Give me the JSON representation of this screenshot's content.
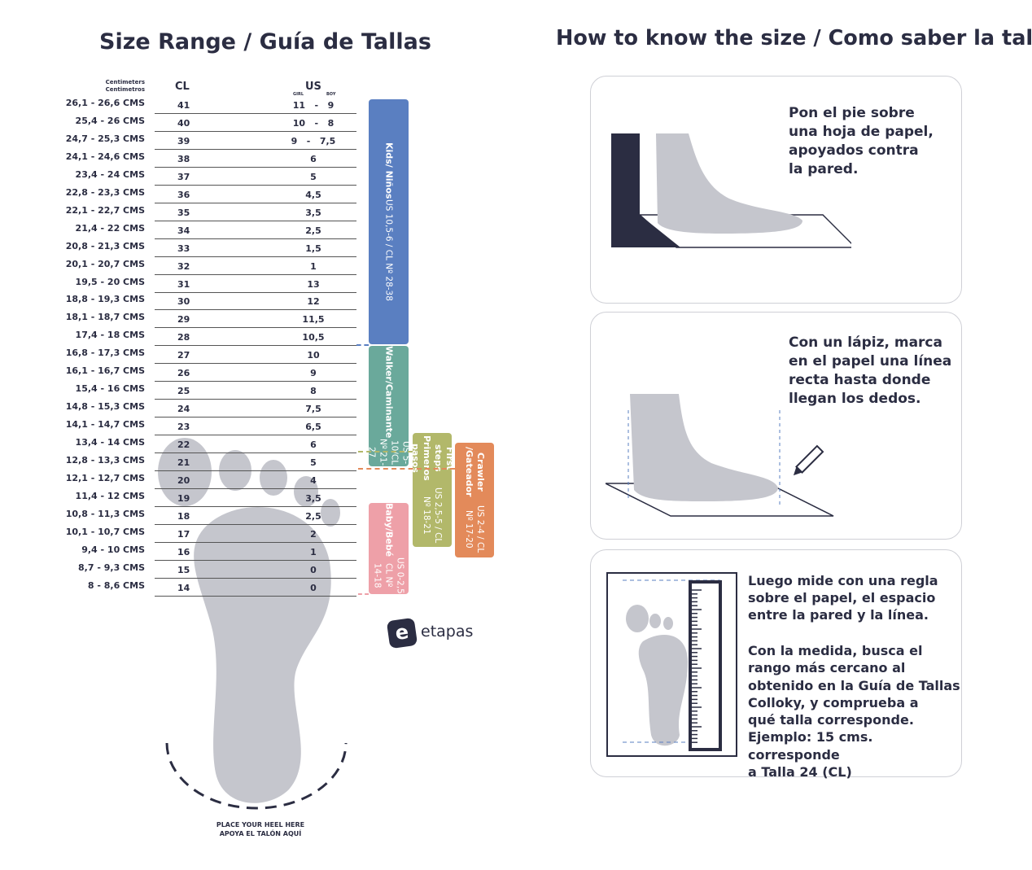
{
  "left": {
    "title": "Size Range / Guía de Tallas",
    "header_cm_en": "Centimeters",
    "header_cm_es": "Centimetros",
    "header_cl": "CL",
    "header_us": "US",
    "header_girl": "GIRL",
    "header_boy": "BOY",
    "rows": [
      {
        "cm": "26,1 - 26,6 CMS",
        "cl": "41",
        "us": "11   -   9"
      },
      {
        "cm": "25,4 - 26 CMS",
        "cl": "40",
        "us": "10   -   8"
      },
      {
        "cm": "24,7 - 25,3 CMS",
        "cl": "39",
        "us": "9   -   7,5"
      },
      {
        "cm": "24,1 - 24,6 CMS",
        "cl": "38",
        "us": "6"
      },
      {
        "cm": "23,4 - 24 CMS",
        "cl": "37",
        "us": "5"
      },
      {
        "cm": "22,8 - 23,3 CMS",
        "cl": "36",
        "us": "4,5"
      },
      {
        "cm": "22,1 - 22,7 CMS",
        "cl": "35",
        "us": "3,5"
      },
      {
        "cm": "21,4 - 22 CMS",
        "cl": "34",
        "us": "2,5"
      },
      {
        "cm": "20,8 - 21,3 CMS",
        "cl": "33",
        "us": "1,5"
      },
      {
        "cm": "20,1 - 20,7 CMS",
        "cl": "32",
        "us": "1"
      },
      {
        "cm": "19,5 - 20 CMS",
        "cl": "31",
        "us": "13"
      },
      {
        "cm": "18,8 - 19,3 CMS",
        "cl": "30",
        "us": "12"
      },
      {
        "cm": "18,1 - 18,7 CMS",
        "cl": "29",
        "us": "11,5"
      },
      {
        "cm": "17,4 - 18 CMS",
        "cl": "28",
        "us": "10,5"
      },
      {
        "cm": "16,8 - 17,3 CMS",
        "cl": "27",
        "us": "10"
      },
      {
        "cm": "16,1 - 16,7 CMS",
        "cl": "26",
        "us": "9"
      },
      {
        "cm": "15,4 - 16 CMS",
        "cl": "25",
        "us": "8"
      },
      {
        "cm": "14,8 - 15,3 CMS",
        "cl": "24",
        "us": "7,5"
      },
      {
        "cm": "14,1 - 14,7 CMS",
        "cl": "23",
        "us": "6,5"
      },
      {
        "cm": "13,4 - 14 CMS",
        "cl": "22",
        "us": "6"
      },
      {
        "cm": "12,8 - 13,3 CMS",
        "cl": "21",
        "us": "5"
      },
      {
        "cm": "12,1 - 12,7 CMS",
        "cl": "20",
        "us": "4"
      },
      {
        "cm": "11,4 - 12 CMS",
        "cl": "19",
        "us": "3,5"
      },
      {
        "cm": "10,8 - 11,3 CMS",
        "cl": "18",
        "us": "2,5"
      },
      {
        "cm": "10,1 - 10,7 CMS",
        "cl": "17",
        "us": "2"
      },
      {
        "cm": "9,4 - 10 CMS",
        "cl": "16",
        "us": "1"
      },
      {
        "cm": "8,7 - 9,3 CMS",
        "cl": "15",
        "us": "0"
      },
      {
        "cm": "8 - 8,6 CMS",
        "cl": "14",
        "us": "0"
      }
    ],
    "bands": [
      {
        "title": "Kids/ Niños",
        "sub": "US 10,5-6 / CL Nº 28-38",
        "color": "#5a7fc1"
      },
      {
        "title": "Walker/Caminante",
        "sub": "US 5-10/CL Nº 21-27",
        "color": "#6aa99b"
      },
      {
        "title": "First steps\nPrimeros pasos",
        "sub": "US 2,5-5 / CL Nº 18-21",
        "color": "#b2b86a"
      },
      {
        "title": "Crawler /Gateador",
        "sub": "US 2-4 / CL Nº 17-20",
        "color": "#e38a5a"
      },
      {
        "title": "Baby/Bebé",
        "sub": "US 0-2,5\nCL Nº 14-18",
        "color": "#eea0a8"
      }
    ],
    "logo_text": "etapas",
    "heel_en": "PLACE YOUR HEEL HERE",
    "heel_es": "APOYA EL TALÓN AQUÍ"
  },
  "right": {
    "title": "How to know the size / Como saber la talla",
    "steps": [
      {
        "text": "Pon el pie sobre\nuna hoja de papel,\napoyados contra\nla pared."
      },
      {
        "text": "Con un lápiz, marca\nen el papel una línea\nrecta hasta donde\nllegan los dedos."
      },
      {
        "text": "Luego mide con una regla\nsobre el papel, el espacio\nentre la pared y la línea.",
        "text2": "Con la medida, busca el\nrango más cercano al\nobtenido en la Guía de Tallas\nColloky, y comprueba a\nqué talla corresponde.\nEjemplo:  15 cms. corresponde\na Talla 24 (CL)"
      }
    ]
  },
  "colors": {
    "text": "#2b2d42",
    "foot": "#c5c6cd",
    "wall": "#2b2d42"
  }
}
